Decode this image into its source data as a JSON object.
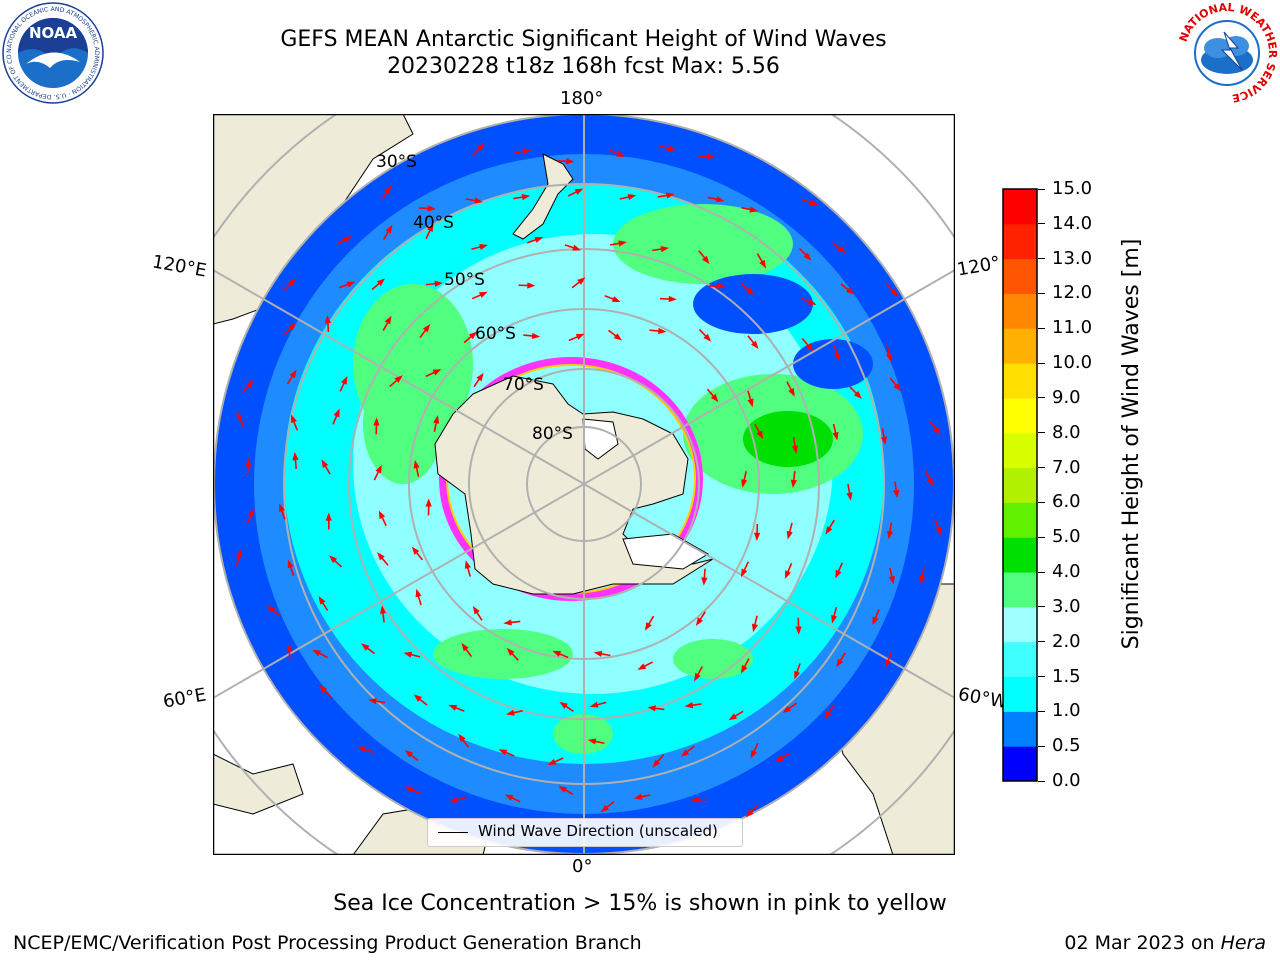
{
  "header": {
    "title_line1": "GEFS MEAN Antarctic Significant Height of Wind Waves",
    "title_line2": "20230228 t18z 168h fcst   Max: 5.56"
  },
  "logos": {
    "noaa_text": "NOAA",
    "noaa_ring": "NATIONAL OCEANIC AND ATMOSPHERIC ADMINISTRATION · U.S. DEPARTMENT OF COMMERCE",
    "nws_ring": "NATIONAL WEATHER SERVICE"
  },
  "map": {
    "lon_labels": {
      "top": "180°",
      "bottom": "0°",
      "left_upper": "120°E",
      "left_lower": "60°E",
      "right_upper": "120°",
      "right_lower": "60°W"
    },
    "lat_labels": [
      "30°S",
      "40°S",
      "50°S",
      "60°S",
      "70°S",
      "80°S"
    ],
    "legend_label": "Wind Wave Direction (unscaled)",
    "colors": {
      "land": "#eeecd9",
      "sea_ice_low": "#ff33ff",
      "sea_ice_high": "#ffff00",
      "arrow": "#ff0000",
      "grid": "#b0b0b0"
    }
  },
  "colorbar": {
    "title": "Significant Height of Wind Waves [m]",
    "ticks": [
      "0.0",
      "0.5",
      "1.0",
      "1.5",
      "2.0",
      "3.0",
      "4.0",
      "5.0",
      "6.0",
      "7.0",
      "8.0",
      "9.0",
      "10.0",
      "11.0",
      "12.0",
      "13.0",
      "14.0",
      "15.0"
    ],
    "colors": [
      "#0000ff",
      "#0080ff",
      "#00ffff",
      "#40ffff",
      "#a0ffff",
      "#50ff80",
      "#00e000",
      "#60f000",
      "#b0f000",
      "#d8ff00",
      "#ffff00",
      "#ffe000",
      "#ffb000",
      "#ff8800",
      "#ff5500",
      "#ff2200",
      "#ff0000"
    ]
  },
  "notes": {
    "sea_ice": "Sea Ice Concentration > 15% is shown in pink to yellow",
    "footer_left": "NCEP/EMC/Verification Post Processing Product Generation Branch",
    "footer_date": "02 Mar 2023 on ",
    "footer_host": "Hera"
  }
}
